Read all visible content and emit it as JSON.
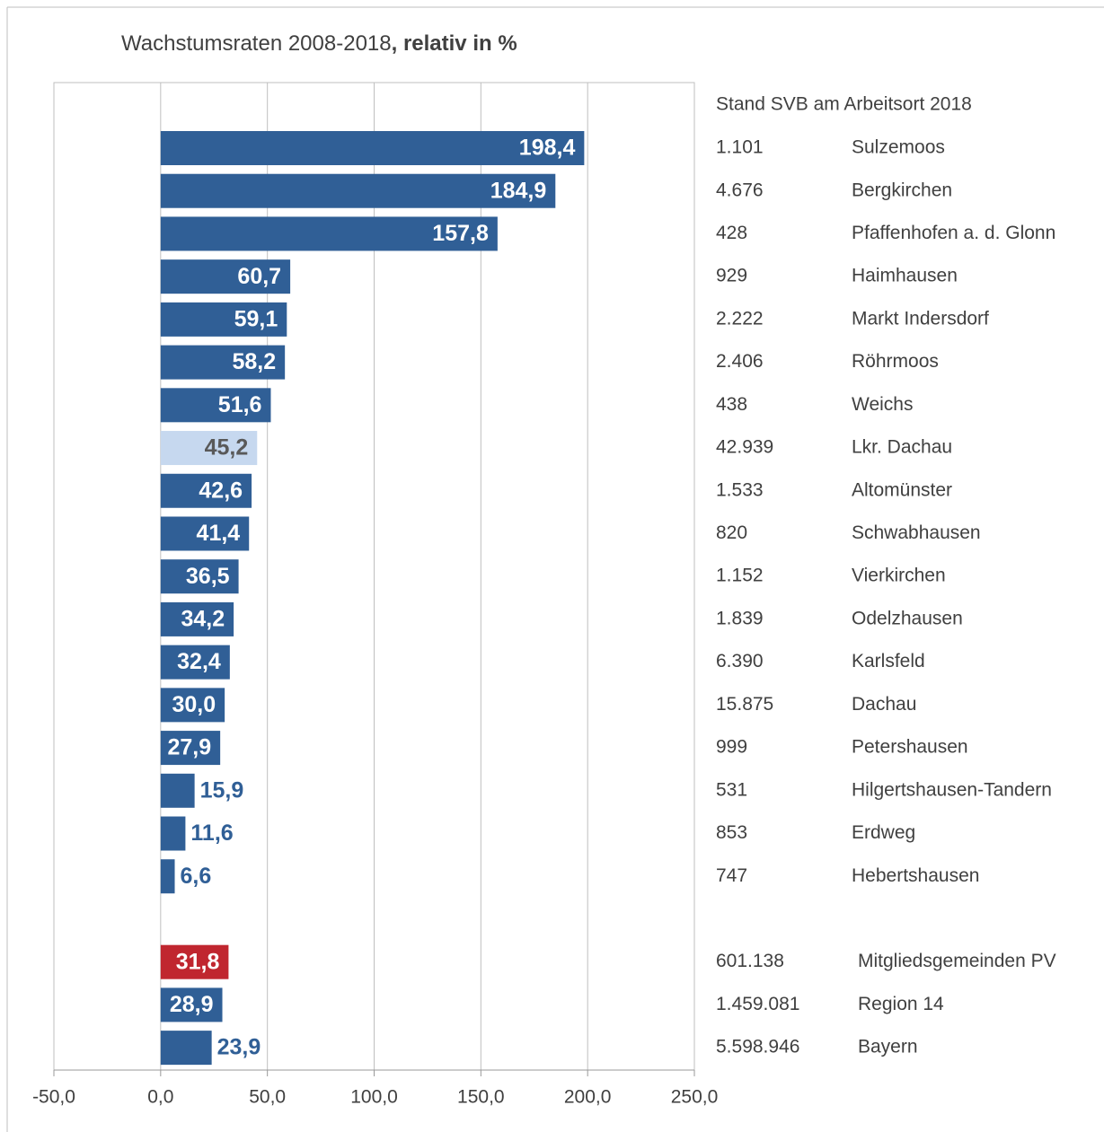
{
  "chart_data": {
    "type": "bar",
    "orientation": "horizontal",
    "title": "Wachstumsraten 2008-2018",
    "title_bold": ", relativ in %",
    "table_header": "Stand SVB am Arbeitsort 2018",
    "categories": [
      "Sulzemoos",
      "Bergkirchen",
      "Pfaffenhofen a. d. Glonn",
      "Haimhausen",
      "Markt Indersdorf",
      "Röhrmoos",
      "Weichs",
      "Lkr. Dachau",
      "Altomünster",
      "Schwabhausen",
      "Vierkirchen",
      "Odelzhausen",
      "Karlsfeld",
      "Dachau",
      "Petershausen",
      "Hilgertshausen-Tandern",
      "Erdweg",
      "Hebertshausen",
      null,
      "Mitgliedsgemeinden PV",
      "Region 14",
      "Bayern"
    ],
    "values": [
      198.4,
      184.9,
      157.8,
      60.7,
      59.1,
      58.2,
      51.6,
      45.2,
      42.6,
      41.4,
      36.5,
      34.2,
      32.4,
      30.0,
      27.9,
      15.9,
      11.6,
      6.6,
      null,
      31.8,
      28.9,
      23.9
    ],
    "value_labels": [
      "198,4",
      "184,9",
      "157,8",
      "60,7",
      "59,1",
      "58,2",
      "51,6",
      "45,2",
      "42,6",
      "41,4",
      "36,5",
      "34,2",
      "32,4",
      "30,0",
      "27,9",
      "15,9",
      "11,6",
      "6,6",
      null,
      "31,8",
      "28,9",
      "23,9"
    ],
    "svb_values": [
      1101,
      4676,
      428,
      929,
      2222,
      2406,
      438,
      42939,
      1533,
      820,
      1152,
      1839,
      6390,
      15875,
      999,
      531,
      853,
      747,
      null,
      601138,
      1459081,
      5598946
    ],
    "svb_labels": [
      "1.101",
      "4.676",
      "428",
      "929",
      "2.222",
      "2.406",
      "438",
      "42.939",
      "1.533",
      "820",
      "1.152",
      "1.839",
      "6.390",
      "15.875",
      "999",
      "531",
      "853",
      "747",
      null,
      "601.138",
      "1.459.081",
      "5.598.946"
    ],
    "colors": [
      "#305f96",
      "#305f96",
      "#305f96",
      "#305f96",
      "#305f96",
      "#305f96",
      "#305f96",
      "#c6d8ef",
      "#305f96",
      "#305f96",
      "#305f96",
      "#305f96",
      "#305f96",
      "#305f96",
      "#305f96",
      "#305f96",
      "#305f96",
      "#305f96",
      null,
      "#c0262f",
      "#305f96",
      "#305f96"
    ],
    "xlim": [
      -50,
      250
    ],
    "xticks": [
      {
        "value": -50,
        "label": "-50,0"
      },
      {
        "value": 0,
        "label": "0,0"
      },
      {
        "value": 50,
        "label": "50,0"
      },
      {
        "value": 100,
        "label": "100,0"
      },
      {
        "value": 150,
        "label": "150,0"
      },
      {
        "value": 200,
        "label": "200,0"
      },
      {
        "value": 250,
        "label": "250,0"
      }
    ],
    "grid": true
  }
}
